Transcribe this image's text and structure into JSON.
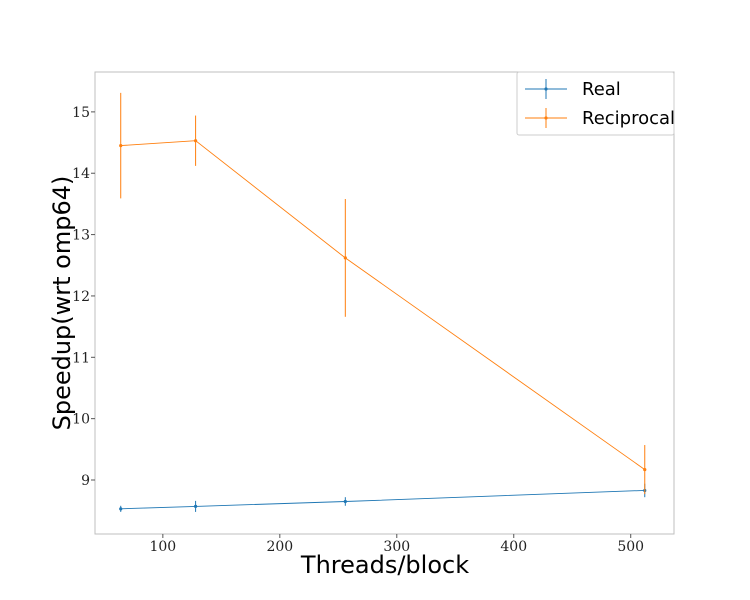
{
  "chart_data": {
    "type": "line",
    "xlabel": "Threads/block",
    "ylabel": "Speedup(wrt omp64)",
    "xlim": [
      42,
      537
    ],
    "ylim": [
      8.12,
      15.65
    ],
    "x_ticks": [
      100,
      200,
      300,
      400,
      500
    ],
    "y_ticks": [
      9,
      10,
      11,
      12,
      13,
      14,
      15
    ],
    "grid": false,
    "legend_position": "top-right",
    "error_bars": true,
    "series": [
      {
        "name": "Real",
        "color": "#1f77b4",
        "x": [
          64,
          128,
          256,
          512
        ],
        "y": [
          8.53,
          8.57,
          8.65,
          8.83
        ],
        "err": [
          0.05,
          0.09,
          0.07,
          0.11
        ]
      },
      {
        "name": "Reciprocal",
        "color": "#ff7f0e",
        "x": [
          64,
          128,
          256,
          512
        ],
        "y": [
          14.45,
          14.53,
          12.62,
          9.17
        ],
        "err": [
          0.86,
          0.41,
          0.96,
          0.4
        ]
      }
    ]
  }
}
